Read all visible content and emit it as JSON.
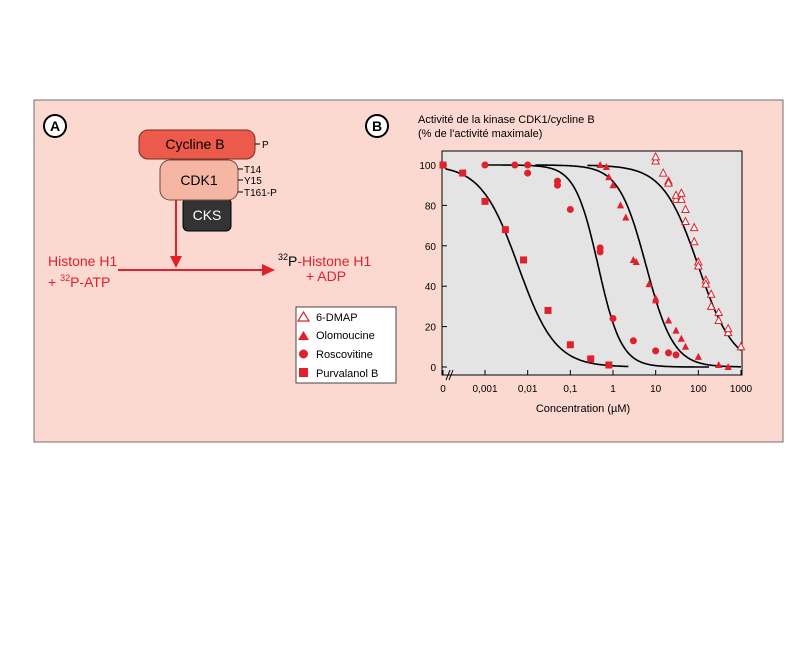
{
  "colors": {
    "panel_bg": "#fbd9d0",
    "plot_bg": "#e4e4e4",
    "accent_red": "#e0202c",
    "cycline_fill": "#ec5a4c",
    "cdk1_fill": "#f5b7a4",
    "cks_fill": "#333333"
  },
  "panel_a": {
    "letter": "A",
    "cycline_label": "Cycline B",
    "cycline_site": "P",
    "cdk1_label": "CDK1",
    "cdk1_sites": [
      "T14",
      "Y15",
      "T161-P"
    ],
    "cks_label": "CKS",
    "substrate": {
      "line1": "Histone H1",
      "line2_plus": "+ ",
      "line2_sup": "32",
      "line2_rest": "P-ATP"
    },
    "product": {
      "line1_sup": "32",
      "line1_rest": "P-Histone H1",
      "line2": "+ ADP"
    }
  },
  "chart_data": {
    "panel_letter": "B",
    "type": "scatter",
    "title_line1": "Activité de la kinase CDK1/cycline B",
    "title_line2": "(% de l'activité maximale)",
    "xlabel": "Concentration (µM)",
    "ylabel": "",
    "xscale": "log",
    "x_ticks": [
      "0",
      "0,001",
      "0,01",
      "0,1",
      "1",
      "10",
      "100",
      "1000"
    ],
    "y_ticks": [
      "0",
      "20",
      "40",
      "60",
      "80",
      "100"
    ],
    "ylim": [
      0,
      100
    ],
    "grid": false,
    "legend_position": "left of plot",
    "series": [
      {
        "name": "6-DMAP",
        "marker": "triangle-open",
        "x": [
          10,
          10,
          15,
          20,
          20,
          30,
          30,
          40,
          40,
          50,
          50,
          80,
          80,
          100,
          100,
          150,
          150,
          200,
          200,
          300,
          300,
          500,
          500,
          1000
        ],
        "y": [
          102,
          104,
          96,
          92,
          91,
          83,
          85,
          83,
          86,
          78,
          72,
          69,
          62,
          52,
          50,
          43,
          41,
          36,
          30,
          27,
          23,
          17,
          19,
          10
        ]
      },
      {
        "name": "Olomoucine",
        "marker": "triangle-filled",
        "x": [
          0.5,
          0.7,
          0.8,
          1,
          1.5,
          2,
          3,
          3.5,
          7,
          10,
          10,
          20,
          30,
          40,
          50,
          100,
          300,
          500
        ],
        "y": [
          100,
          99,
          94,
          90,
          80,
          74,
          53,
          52,
          41,
          34,
          33,
          23,
          18,
          14,
          10,
          5,
          1,
          0
        ]
      },
      {
        "name": "Roscovitine",
        "marker": "circle",
        "x": [
          0.001,
          0.005,
          0.01,
          0.01,
          0.05,
          0.05,
          0.1,
          0.5,
          0.5,
          1,
          3,
          10,
          20,
          30
        ],
        "y": [
          100,
          100,
          100,
          96,
          92,
          90,
          78,
          59,
          57,
          24,
          13,
          8,
          7,
          6
        ]
      },
      {
        "name": "Purvalanol B",
        "marker": "square",
        "x": [
          0,
          0.0003,
          0.001,
          0.003,
          0.008,
          0.03,
          0.1,
          0.3,
          0.8
        ],
        "y": [
          100,
          96,
          82,
          68,
          53,
          28,
          11,
          4,
          1
        ]
      }
    ],
    "curves": [
      {
        "ic50": 0.006,
        "hill": 1.0
      },
      {
        "ic50": 0.45,
        "hill": 1.6
      },
      {
        "ic50": 6,
        "hill": 1.35
      },
      {
        "ic50": 100,
        "hill": 1.05
      }
    ]
  }
}
